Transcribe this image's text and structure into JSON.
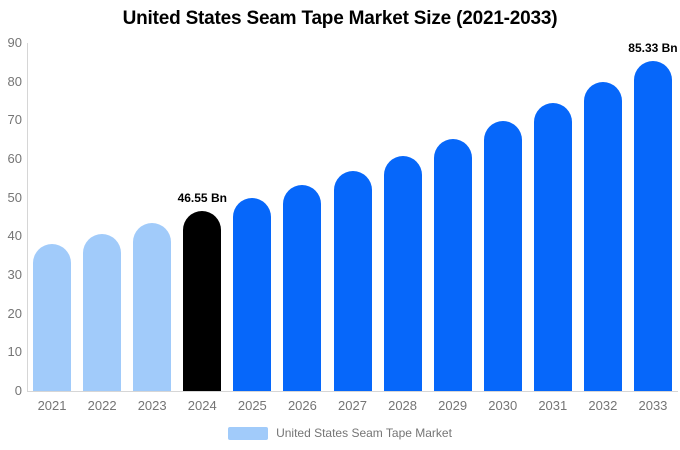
{
  "chart_data": {
    "type": "bar",
    "title": "United States Seam Tape Market Size (2021-2033)",
    "unit": "Bn",
    "categories": [
      "2021",
      "2022",
      "2023",
      "2024",
      "2025",
      "2026",
      "2027",
      "2028",
      "2029",
      "2030",
      "2031",
      "2032",
      "2033"
    ],
    "values": [
      38.0,
      40.7,
      43.5,
      46.55,
      49.8,
      53.3,
      57.0,
      60.9,
      65.2,
      69.7,
      74.6,
      79.8,
      85.33
    ],
    "bar_colors": [
      "#A1CBFA",
      "#A1CBFA",
      "#A1CBFA",
      "#000000",
      "#0667FA",
      "#0667FA",
      "#0667FA",
      "#0667FA",
      "#0667FA",
      "#0667FA",
      "#0667FA",
      "#0667FA",
      "#0667FA"
    ],
    "data_labels": [
      {
        "index": 3,
        "text": "46.55 Bn"
      },
      {
        "index": 12,
        "text": "85.33 Bn"
      }
    ],
    "ylim": [
      0,
      90
    ],
    "yticks": [
      0,
      10,
      20,
      30,
      40,
      50,
      60,
      70,
      80,
      90
    ],
    "grid": false,
    "xlabel": "",
    "ylabel": "",
    "legend": {
      "position": "bottom",
      "label": "United States Seam Tape Market",
      "swatch_color": "#A1CBFA"
    },
    "colors": {
      "historical_bar": "#A1CBFA",
      "base_year_bar": "#000000",
      "forecast_bar": "#0667FA",
      "axis_text": "#757575",
      "axis_line": "#D6D6D6",
      "title_text": "#000000",
      "data_label_text": "#000000"
    }
  }
}
